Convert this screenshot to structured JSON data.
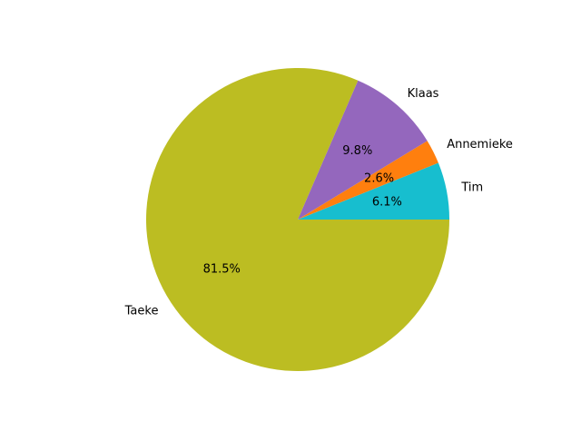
{
  "chart_data": {
    "type": "pie",
    "title": "",
    "start_angle_deg": 0,
    "direction": "counterclockwise",
    "slices": [
      {
        "label": "Tim",
        "value": 6.1,
        "pct_label": "6.1%",
        "color": "#17becf"
      },
      {
        "label": "Annemieke",
        "value": 2.6,
        "pct_label": "2.6%",
        "color": "#ff7f0e"
      },
      {
        "label": "Klaas",
        "value": 9.8,
        "pct_label": "9.8%",
        "color": "#9467bd"
      },
      {
        "label": "Taeke",
        "value": 81.5,
        "pct_label": "81.5%",
        "color": "#bcbd22"
      }
    ]
  }
}
